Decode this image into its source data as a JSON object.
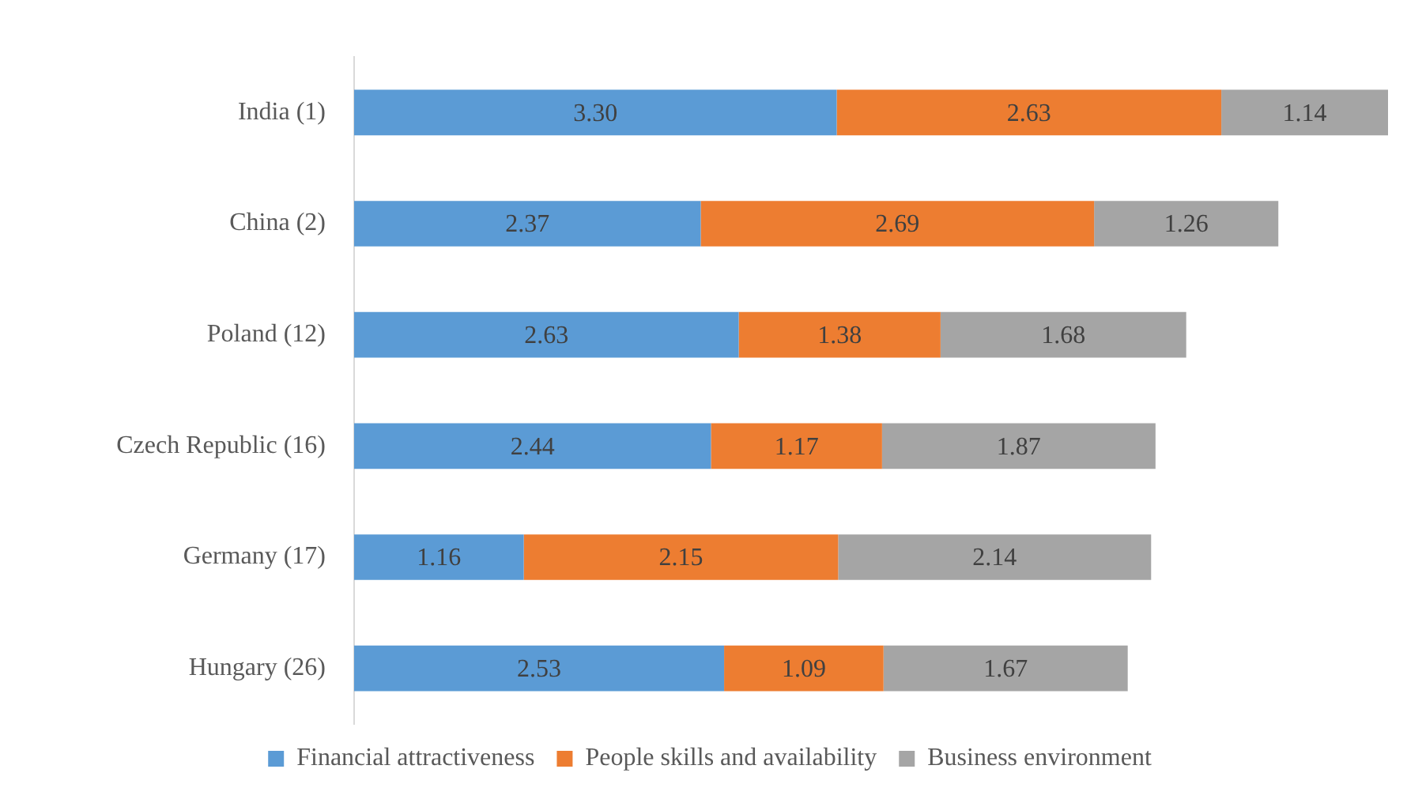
{
  "chart_data": {
    "type": "bar",
    "orientation": "horizontal",
    "stacked": true,
    "legend": "bottom",
    "categories": [
      "India (1)",
      "China (2)",
      "Poland (12)",
      "Czech Republic (16)",
      "Germany (17)",
      "Hungary (26)"
    ],
    "series": [
      {
        "name": "Financial attractiveness",
        "color": "#5b9bd5",
        "values": [
          3.3,
          2.37,
          2.63,
          2.44,
          1.16,
          2.53
        ],
        "value_labels": [
          "3.30",
          "2.37",
          "2.63",
          "2.44",
          "1.16",
          "2.53"
        ]
      },
      {
        "name": "People skills and availability",
        "color": "#ed7d31",
        "values": [
          2.63,
          2.69,
          1.38,
          1.17,
          2.15,
          1.09
        ],
        "value_labels": [
          "2.63",
          "2.69",
          "1.38",
          "1.17",
          "2.15",
          "1.09"
        ]
      },
      {
        "name": "Business environment",
        "color": "#a5a5a5",
        "values": [
          1.14,
          1.26,
          1.68,
          1.87,
          2.14,
          1.67
        ],
        "value_labels": [
          "1.14",
          "1.26",
          "1.68",
          "1.87",
          "2.14",
          "1.67"
        ]
      }
    ]
  }
}
